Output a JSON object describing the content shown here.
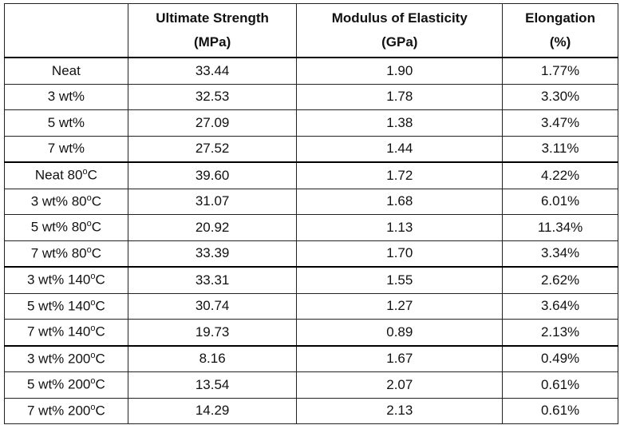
{
  "table": {
    "header": [
      [
        "Ultimate Strength",
        "(MPa)"
      ],
      [
        "Modulus of Elasticity",
        "(GPa)"
      ],
      [
        "Elongation",
        "(%)"
      ]
    ],
    "rows": [
      {
        "label": [
          "Neat"
        ],
        "cells": [
          "33.44",
          "1.90",
          "1.77%"
        ]
      },
      {
        "label": [
          "3 wt%"
        ],
        "cells": [
          "32.53",
          "1.78",
          "3.30%"
        ]
      },
      {
        "label": [
          "5 wt%"
        ],
        "cells": [
          "27.09",
          "1.38",
          "3.47%"
        ]
      },
      {
        "label": [
          "7 wt%"
        ],
        "cells": [
          "27.52",
          "1.44",
          "3.11%"
        ]
      },
      {
        "label": [
          "Neat 80",
          "o",
          "C"
        ],
        "cells": [
          "39.60",
          "1.72",
          "4.22%"
        ]
      },
      {
        "label": [
          "3 wt% 80",
          "o",
          "C"
        ],
        "cells": [
          "31.07",
          "1.68",
          "6.01%"
        ]
      },
      {
        "label": [
          "5 wt% 80",
          "o",
          "C"
        ],
        "cells": [
          "20.92",
          "1.13",
          "11.34%"
        ]
      },
      {
        "label": [
          "7 wt% 80",
          "o",
          "C"
        ],
        "cells": [
          "33.39",
          "1.70",
          "3.34%"
        ]
      },
      {
        "label": [
          "3 wt% 140",
          "o",
          "C"
        ],
        "cells": [
          "33.31",
          "1.55",
          "2.62%"
        ]
      },
      {
        "label": [
          "5 wt% 140",
          "o",
          "C"
        ],
        "cells": [
          "30.74",
          "1.27",
          "3.64%"
        ]
      },
      {
        "label": [
          "7 wt% 140",
          "o",
          "C"
        ],
        "cells": [
          "19.73",
          "0.89",
          "2.13%"
        ]
      },
      {
        "label": [
          "3 wt% 200",
          "o",
          "C"
        ],
        "cells": [
          "8.16",
          "1.67",
          "0.49%"
        ]
      },
      {
        "label": [
          "5 wt% 200",
          "o",
          "C"
        ],
        "cells": [
          "13.54",
          "2.07",
          "0.61%"
        ]
      },
      {
        "label": [
          "7 wt% 200",
          "o",
          "C"
        ],
        "cells": [
          "14.29",
          "2.13",
          "0.61%"
        ]
      }
    ]
  }
}
